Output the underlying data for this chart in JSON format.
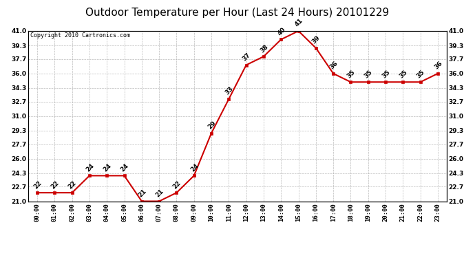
{
  "title": "Outdoor Temperature per Hour (Last 24 Hours) 20101229",
  "copyright": "Copyright 2010 Cartronics.com",
  "hours": [
    "00:00",
    "01:00",
    "02:00",
    "03:00",
    "04:00",
    "05:00",
    "06:00",
    "07:00",
    "08:00",
    "09:00",
    "10:00",
    "11:00",
    "12:00",
    "13:00",
    "14:00",
    "15:00",
    "16:00",
    "17:00",
    "18:00",
    "19:00",
    "20:00",
    "21:00",
    "22:00",
    "23:00"
  ],
  "temps": [
    22,
    22,
    22,
    24,
    24,
    24,
    21,
    21,
    22,
    24,
    29,
    33,
    37,
    38,
    40,
    41,
    39,
    36,
    35,
    35,
    35,
    35,
    35,
    36
  ],
  "ylim": [
    21.0,
    41.0
  ],
  "yticks": [
    21.0,
    22.7,
    24.3,
    26.0,
    27.7,
    29.3,
    31.0,
    32.7,
    34.3,
    36.0,
    37.7,
    39.3,
    41.0
  ],
  "line_color": "#cc0000",
  "marker_color": "#cc0000",
  "bg_color": "#ffffff",
  "grid_color": "#aaaaaa",
  "title_fontsize": 11,
  "label_fontsize": 6.5,
  "copyright_fontsize": 6,
  "annot_fontsize": 6.5
}
